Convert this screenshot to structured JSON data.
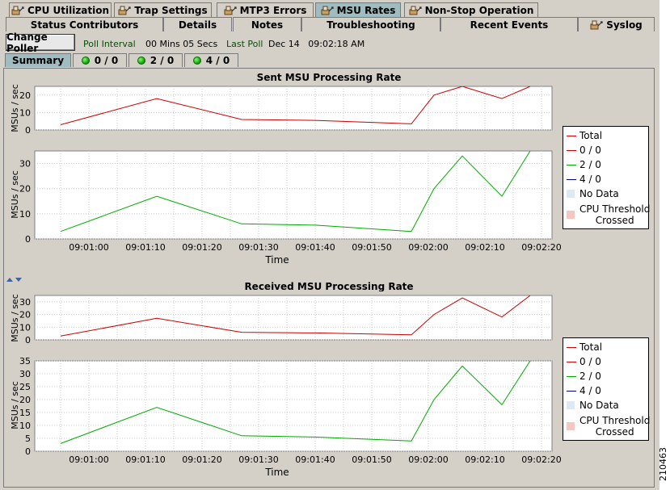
{
  "tabs_top": [
    {
      "label": "CPU Utilization",
      "icon": "device-icon",
      "active": false
    },
    {
      "label": "Trap Settings",
      "icon": "device-icon",
      "active": false
    },
    {
      "label": "MTP3 Errors",
      "icon": "device-icon",
      "active": false
    },
    {
      "label": "MSU Rates",
      "icon": "device-icon",
      "active": true
    },
    {
      "label": "Non-Stop Operation",
      "icon": "device-icon",
      "active": false
    }
  ],
  "tabs_second": [
    {
      "label": "Status Contributors",
      "icon": ""
    },
    {
      "label": "Details",
      "icon": ""
    },
    {
      "label": "Notes",
      "icon": ""
    },
    {
      "label": "Troubleshooting",
      "icon": ""
    },
    {
      "label": "Recent Events",
      "icon": ""
    },
    {
      "label": "Syslog",
      "icon": "device-icon"
    }
  ],
  "toolbar": {
    "change_poller_label": "Change Poller",
    "poll_interval_label": "Poll Interval",
    "poll_interval_value": "00 Mins 05 Secs",
    "last_poll_label": "Last Poll",
    "last_poll_value": "Dec 14   09:02:18 AM"
  },
  "subtabs": [
    {
      "label": "Summary",
      "status_icon": false,
      "active": true
    },
    {
      "label": "0 / 0",
      "status_icon": true,
      "active": false
    },
    {
      "label": "2 / 0",
      "status_icon": true,
      "active": false
    },
    {
      "label": "4 / 0",
      "status_icon": true,
      "active": false
    }
  ],
  "figure_id": "210463",
  "colors": {
    "total": "#cc0000",
    "s00": "#cc0000",
    "s20": "#00aa00",
    "s40": "#000088",
    "no_data": "#dce8f4",
    "threshold": "#f4c8c0",
    "panel_bg": "#d4d0c8",
    "active_tab": "#9fbcc0"
  },
  "legend_entries": [
    {
      "label": "Total",
      "type": "line",
      "color": "#cc0000"
    },
    {
      "label": "0 / 0",
      "type": "line",
      "color": "#cc0000"
    },
    {
      "label": "2 / 0",
      "type": "line",
      "color": "#00aa00"
    },
    {
      "label": "4 / 0",
      "type": "line",
      "color": "#000088"
    },
    {
      "label": "No Data",
      "type": "swatch",
      "color": "#dce8f4"
    },
    {
      "label": "CPU Threshold\nCrossed",
      "type": "swatch",
      "color": "#f4c8c0"
    }
  ],
  "chart_data": [
    {
      "type": "line",
      "title": "Sent MSU Processing Rate",
      "xlabel": "Time",
      "ylabel": "MSUs / sec",
      "x_ticks": [
        "09:01:00",
        "09:01:10",
        "09:01:20",
        "09:01:30",
        "09:01:40",
        "09:01:50",
        "09:02:00",
        "09:02:10",
        "09:02:20"
      ],
      "top_plot": {
        "ylim": [
          0,
          25
        ],
        "y_ticks": [
          0,
          10,
          20
        ],
        "series": [
          {
            "name": "Total",
            "color": "#cc0000",
            "points": [
              [
                -5,
                3
              ],
              [
                12,
                18
              ],
              [
                27,
                6
              ],
              [
                40,
                5.5
              ],
              [
                57,
                3.5
              ],
              [
                61,
                20
              ],
              [
                66,
                35
              ],
              [
                73,
                18
              ],
              [
                78,
                35
              ]
            ]
          }
        ]
      },
      "bottom_plot": {
        "ylim": [
          0,
          35
        ],
        "y_ticks": [
          0,
          10,
          20,
          30
        ],
        "series": [
          {
            "name": "2 / 0",
            "color": "#00aa00",
            "points": [
              [
                -5,
                3
              ],
              [
                12,
                17
              ],
              [
                27,
                6
              ],
              [
                40,
                5.5
              ],
              [
                57,
                3
              ],
              [
                61,
                20
              ],
              [
                66,
                33
              ],
              [
                73,
                17
              ],
              [
                78,
                35
              ]
            ]
          }
        ]
      }
    },
    {
      "type": "line",
      "title": "Received MSU Processing Rate",
      "xlabel": "Time",
      "ylabel": "MSUs / sec",
      "x_ticks": [
        "09:01:00",
        "09:01:10",
        "09:01:20",
        "09:01:30",
        "09:01:40",
        "09:01:50",
        "09:02:00",
        "09:02:10",
        "09:02:20"
      ],
      "top_plot": {
        "ylim": [
          0,
          35
        ],
        "y_ticks": [
          0,
          10,
          20,
          30
        ],
        "series": [
          {
            "name": "Total",
            "color": "#cc0000",
            "points": [
              [
                -5,
                3
              ],
              [
                12,
                17
              ],
              [
                27,
                6
              ],
              [
                40,
                5.5
              ],
              [
                57,
                4
              ],
              [
                61,
                20
              ],
              [
                66,
                33
              ],
              [
                73,
                18
              ],
              [
                78,
                35
              ]
            ]
          }
        ]
      },
      "bottom_plot": {
        "ylim": [
          0,
          35
        ],
        "y_ticks": [
          0,
          5,
          10,
          15,
          20,
          25,
          30,
          35
        ],
        "series": [
          {
            "name": "2 / 0",
            "color": "#00aa00",
            "points": [
              [
                -5,
                3
              ],
              [
                12,
                17
              ],
              [
                27,
                6
              ],
              [
                40,
                5.5
              ],
              [
                57,
                4
              ],
              [
                61,
                20
              ],
              [
                66,
                33
              ],
              [
                73,
                18
              ],
              [
                78,
                35
              ]
            ]
          }
        ]
      }
    }
  ]
}
